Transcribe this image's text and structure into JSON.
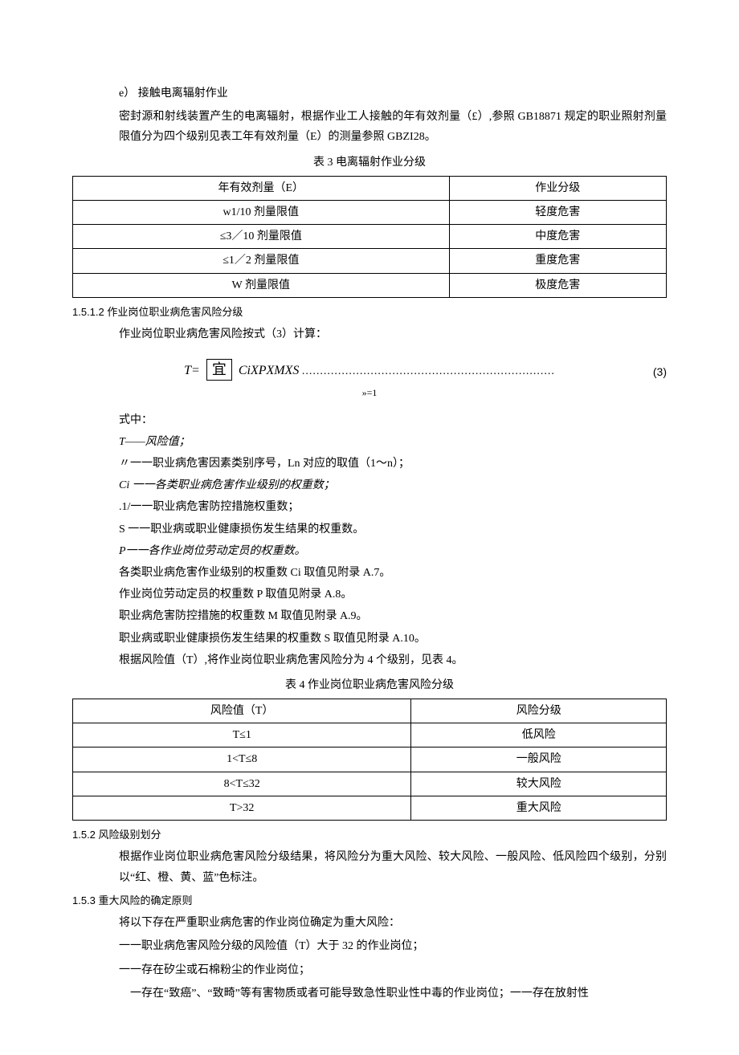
{
  "sec_e": {
    "label": "e）",
    "title": "接触电离辐射作业",
    "para": "密封源和射线装置产生的电离辐射，根据作业工人接触的年有效剂量（£）,参照 GB18871 规定的职业照射剂量限值分为四个级别见表工年有效剂量（E）的测量参照 GBZI28。"
  },
  "table3": {
    "caption": "表 3 电离辐射作业分级",
    "header": [
      "年有效剂量（E）",
      "作业分级"
    ],
    "rows": [
      [
        "w1/10 剂量限值",
        "轻度危害"
      ],
      [
        "≤3／10 剂量限值",
        "中度危害"
      ],
      [
        "≤1／2 剂量限值",
        "重度危害"
      ],
      [
        "W 剂量限值",
        "极度危害"
      ]
    ]
  },
  "sec_1512": {
    "num": "1.5.1.2 作业岗位职业病危害风险分级",
    "para": "作业岗位职业病危害风险按式（3）计算：",
    "formula_prefix": "T=",
    "formula_box": "宜",
    "formula_suffix": "CiXPXMXS",
    "formula_dots": "......................................................................",
    "formula_num": "(3)",
    "formula_sub": "»=1",
    "defs_title": "式中：",
    "defs": [
      "T——风险值；",
      "〃一一职业病危害因素类别序号，Ln 对应的取值（1～n）；",
      "Ci 一一各类职业病危害作业级别的权重数；",
      ".1/一一职业病危害防控措施权重数；",
      "S 一一职业病或职业健康损伤发生结果的权重数。",
      "P一一各作业岗位劳动定员的权重数。",
      "各类职业病危害作业级别的权重数 Ci 取值见附录 A.7。",
      "作业岗位劳动定员的权重数 P 取值见附录 A.8。",
      "职业病危害防控措施的权重数 M 取值见附录 A.9。",
      "职业病或职业健康损伤发生结果的权重数 S 取值见附录 A.10。",
      "根据风险值（T）,将作业岗位职业病危害风险分为 4 个级别，见表 4。"
    ]
  },
  "table4": {
    "caption": "表 4 作业岗位职业病危害风险分级",
    "header": [
      "风险值（T）",
      "风险分级"
    ],
    "rows": [
      [
        "T≤1",
        "低风险"
      ],
      [
        "1<T≤8",
        "一般风险"
      ],
      [
        "8<T≤32",
        "较大风险"
      ],
      [
        "T>32",
        "重大风险"
      ]
    ]
  },
  "sec_152": {
    "num": "1.5.2 风险级别划分",
    "para": "根据作业岗位职业病危害风险分级结果，将风险分为重大风险、较大风险、一般风险、低风险四个级别，分别以“红、橙、黄、蓝”色标注。"
  },
  "sec_153": {
    "num": "1.5.3 重大风险的确定原则",
    "lines": [
      "将以下存在严重职业病危害的作业岗位确定为重大风险：",
      "一一职业病危害风险分级的风险值（T）大于 32 的作业岗位；",
      "一一存在矽尘或石棉粉尘的作业岗位；",
      "　一存在“致癌”、“致畸”等有害物质或者可能导致急性职业性中毒的作业岗位；一一存在放射性"
    ]
  }
}
